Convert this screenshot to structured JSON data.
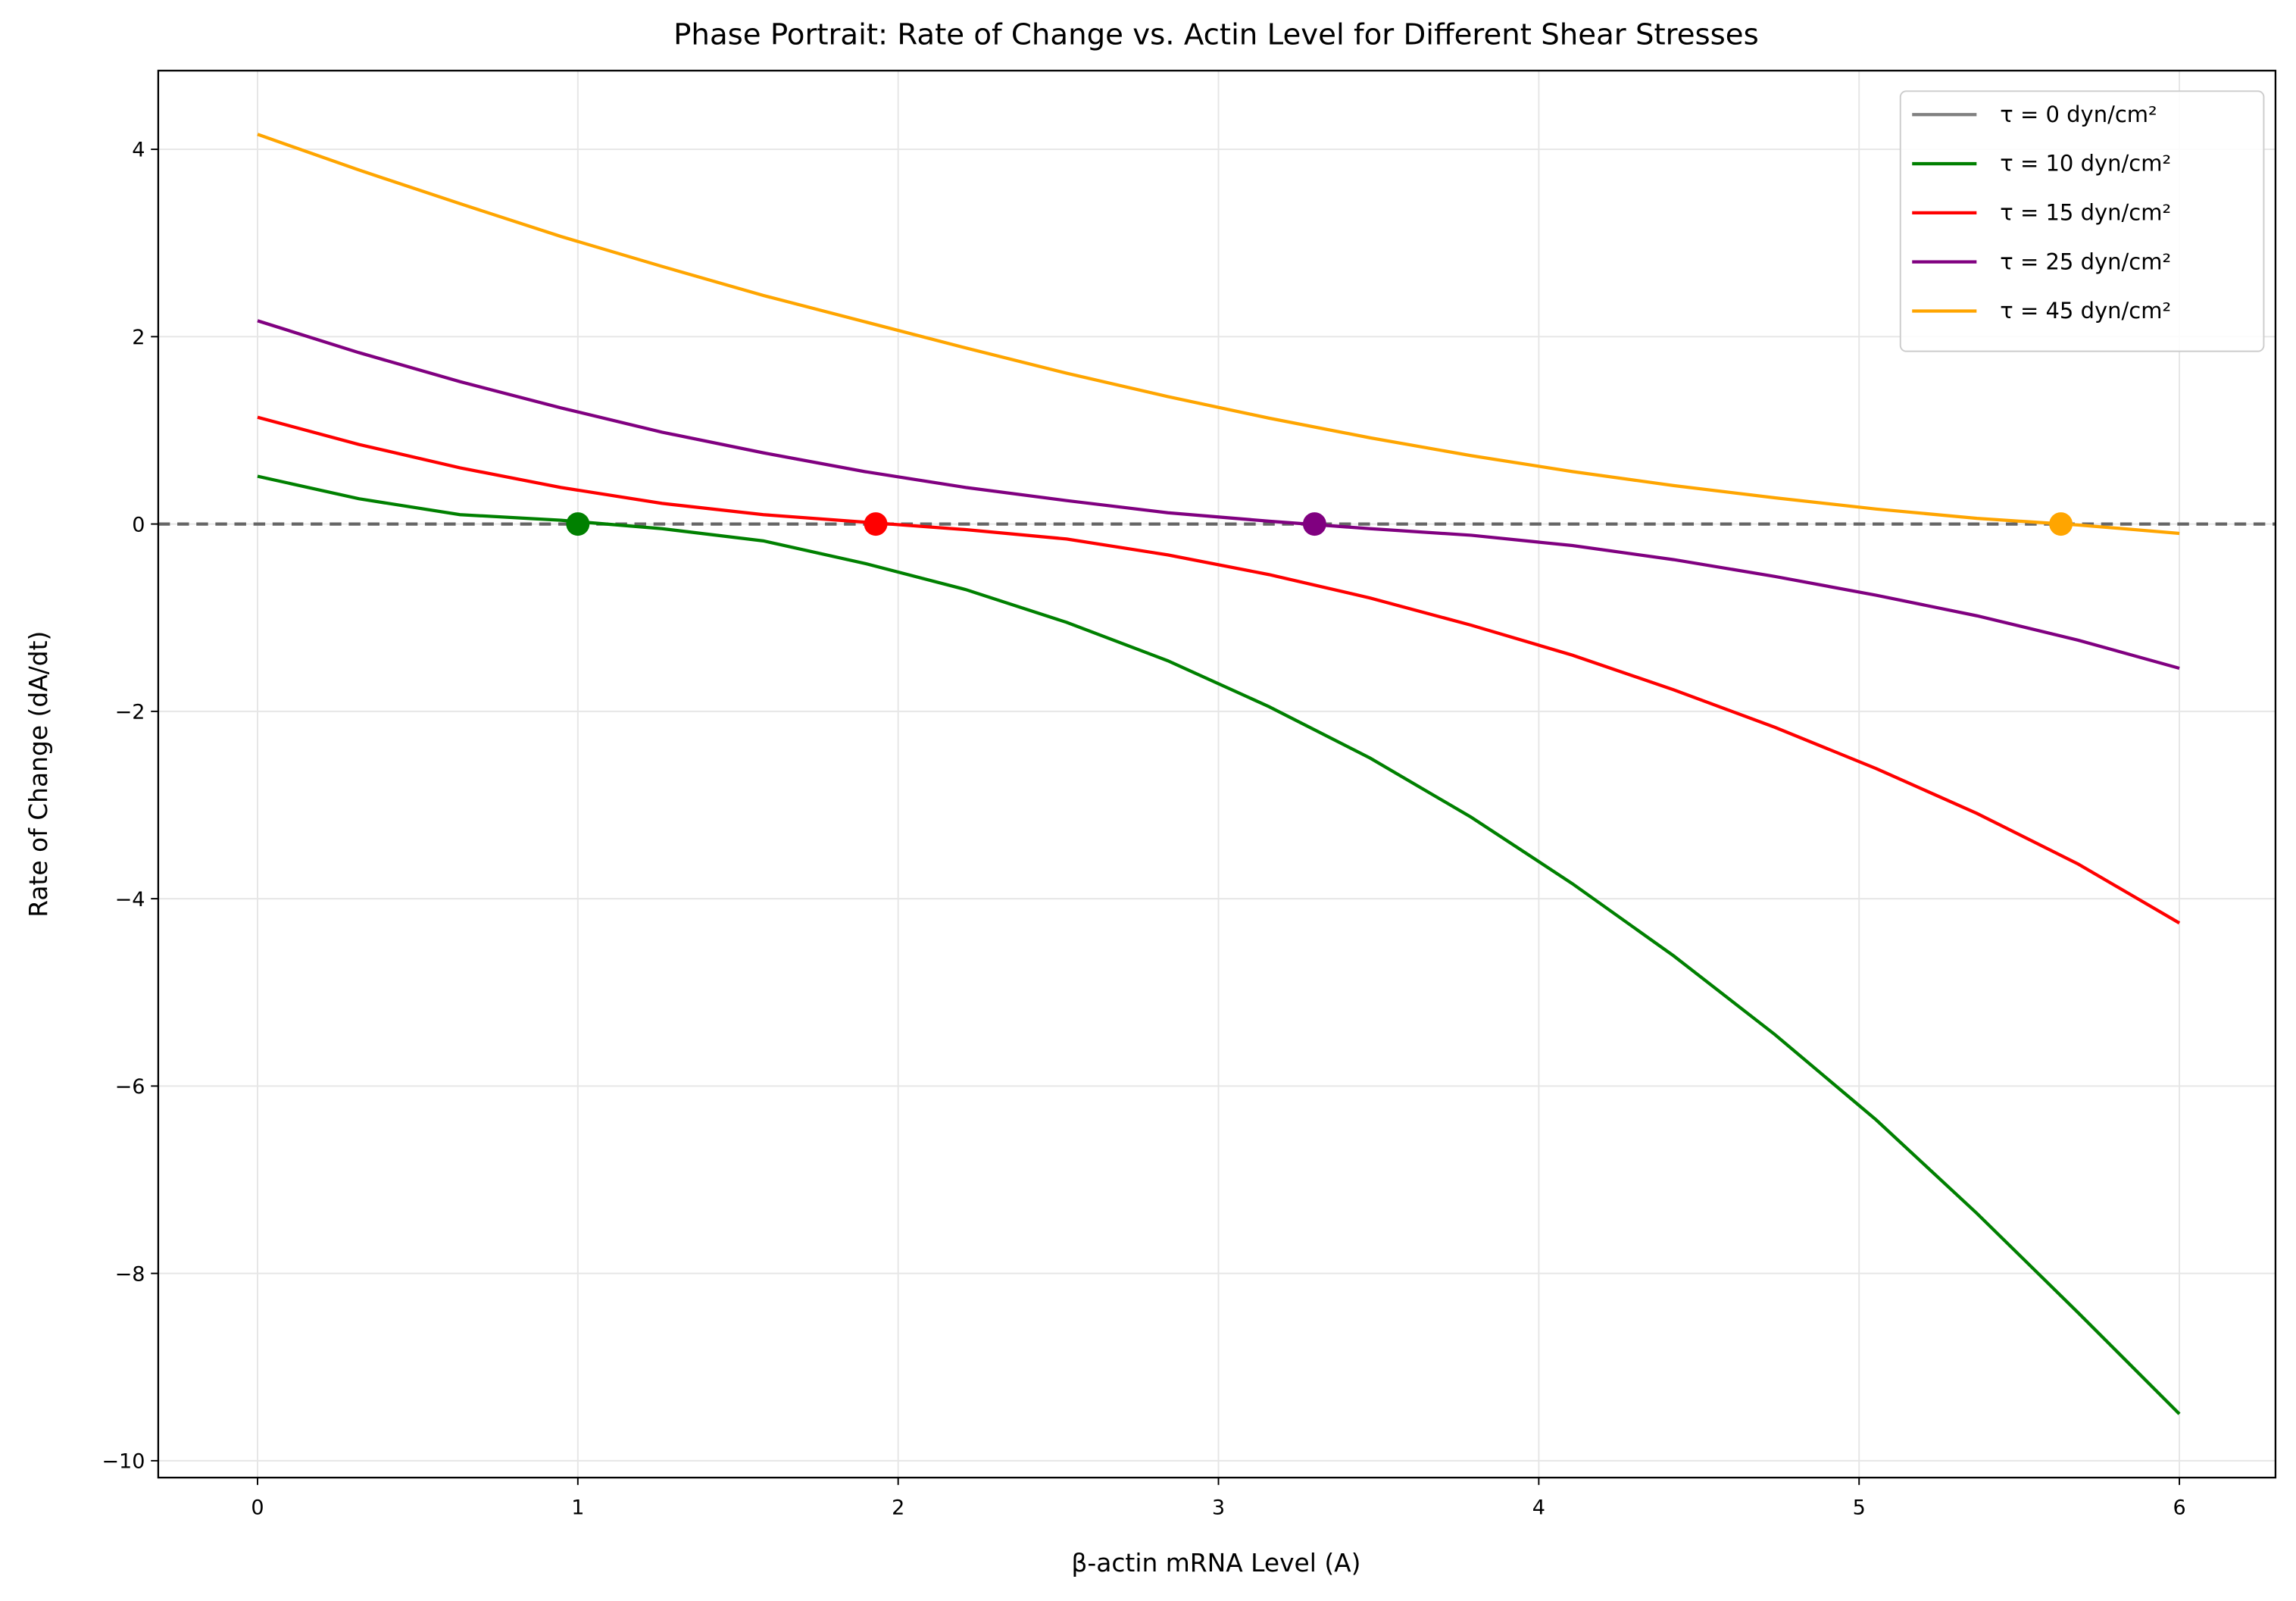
{
  "chart_data": {
    "type": "line",
    "title": "Phase Portrait: Rate of Change vs. Actin Level for Different Shear Stresses",
    "xlabel": "β-actin mRNA Level (A)",
    "ylabel": "Rate of Change (dA/dt)",
    "x": [
      0,
      0.316,
      0.632,
      0.947,
      1.263,
      1.579,
      1.895,
      2.211,
      2.526,
      2.842,
      3.158,
      3.474,
      3.789,
      4.105,
      4.421,
      4.737,
      5.053,
      5.368,
      5.684,
      6
    ],
    "series": [
      {
        "name": "τ = 0 dyn/cm²",
        "color": "#808080",
        "values": [
          null,
          null,
          null,
          null,
          null,
          null,
          null,
          null,
          null,
          null,
          null,
          null,
          null,
          null,
          null,
          null,
          null,
          null,
          null,
          null
        ]
      },
      {
        "name": "τ = 10 dyn/cm²",
        "color": "#008000",
        "values": [
          0.51,
          0.27,
          0.1,
          0.04,
          -0.05,
          -0.18,
          -0.42,
          -0.7,
          -1.05,
          -1.46,
          -1.95,
          -2.5,
          -3.13,
          -3.84,
          -4.61,
          -5.45,
          -6.36,
          -7.36,
          -8.42,
          -9.5
        ]
      },
      {
        "name": "τ = 15 dyn/cm²",
        "color": "#ff0000",
        "values": [
          1.14,
          0.85,
          0.6,
          0.39,
          0.22,
          0.1,
          0.02,
          -0.06,
          -0.16,
          -0.33,
          -0.54,
          -0.79,
          -1.08,
          -1.4,
          -1.77,
          -2.17,
          -2.61,
          -3.09,
          -3.63,
          -4.26
        ]
      },
      {
        "name": "τ = 25 dyn/cm²",
        "color": "#800080",
        "values": [
          2.17,
          1.83,
          1.52,
          1.24,
          0.98,
          0.76,
          0.56,
          0.39,
          0.25,
          0.12,
          0.03,
          -0.05,
          -0.12,
          -0.23,
          -0.38,
          -0.56,
          -0.76,
          -0.98,
          -1.24,
          -1.54
        ]
      },
      {
        "name": "τ = 45 dyn/cm²",
        "color": "#ffa500",
        "values": [
          4.16,
          3.78,
          3.42,
          3.07,
          2.75,
          2.44,
          2.16,
          1.88,
          1.61,
          1.36,
          1.13,
          0.92,
          0.73,
          0.56,
          0.41,
          0.28,
          0.16,
          0.06,
          -0.01,
          -0.1
        ]
      }
    ],
    "fixed_points": [
      {
        "x": 1.0,
        "y": 0,
        "color": "#008000"
      },
      {
        "x": 1.93,
        "y": 0,
        "color": "#ff0000"
      },
      {
        "x": 3.3,
        "y": 0,
        "color": "#800080"
      },
      {
        "x": 5.63,
        "y": 0,
        "color": "#ffa500"
      }
    ],
    "reference_line": {
      "y": 0,
      "color": "#666666"
    },
    "xlim": [
      -0.31,
      6.3
    ],
    "ylim": [
      -10.18,
      4.84
    ],
    "xticks": [
      0,
      1,
      2,
      3,
      4,
      5,
      6
    ],
    "yticks": [
      {
        "value": -10,
        "label": "−10"
      },
      {
        "value": -8,
        "label": "−8"
      },
      {
        "value": -6,
        "label": "−6"
      },
      {
        "value": -4,
        "label": "−4"
      },
      {
        "value": -2,
        "label": "−2"
      },
      0,
      2,
      4
    ],
    "grid": true,
    "legend": "upper right"
  }
}
